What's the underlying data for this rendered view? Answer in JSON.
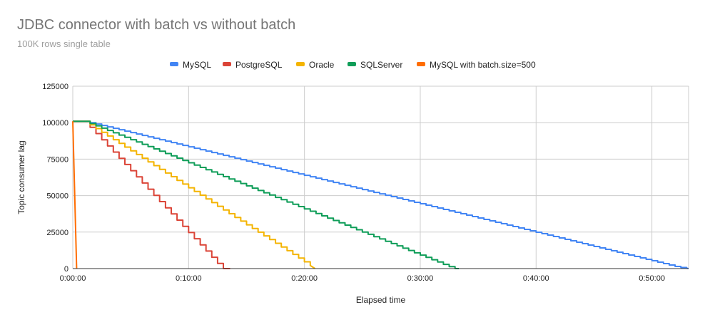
{
  "chart_data": {
    "type": "line",
    "title": "JDBC connector with batch vs without batch",
    "subtitle": "100K rows single table",
    "xlabel": "Elapsed time",
    "ylabel": "Topic consumer lag",
    "x_unit": "seconds",
    "xlim": [
      0,
      3190
    ],
    "ylim": [
      0,
      125000
    ],
    "x_ticks": [
      {
        "value": 0,
        "label": "0:00:00"
      },
      {
        "value": 600,
        "label": "0:10:00"
      },
      {
        "value": 1200,
        "label": "0:20:00"
      },
      {
        "value": 1800,
        "label": "0:30:00"
      },
      {
        "value": 2400,
        "label": "0:40:00"
      },
      {
        "value": 3000,
        "label": "0:50:00"
      }
    ],
    "y_ticks": [
      {
        "value": 0,
        "label": "0"
      },
      {
        "value": 25000,
        "label": "25000"
      },
      {
        "value": 50000,
        "label": "50000"
      },
      {
        "value": 75000,
        "label": "75000"
      },
      {
        "value": 100000,
        "label": "100000"
      },
      {
        "value": 125000,
        "label": "125000"
      }
    ],
    "grid": true,
    "legend_position": "top",
    "series": [
      {
        "name": "MySQL",
        "color": "#4285f4",
        "x": [
          0,
          60,
          3135,
          3190
        ],
        "y": [
          101000,
          101000,
          1000,
          0
        ]
      },
      {
        "name": "PostgreSQL",
        "color": "#db4437",
        "x": [
          0,
          60,
          775,
          815
        ],
        "y": [
          101000,
          101000,
          0,
          0
        ]
      },
      {
        "name": "Oracle",
        "color": "#f4b400",
        "x": [
          0,
          60,
          1255
        ],
        "y": [
          101000,
          101000,
          0
        ]
      },
      {
        "name": "SQLServer",
        "color": "#0f9d58",
        "x": [
          0,
          60,
          1975,
          2000
        ],
        "y": [
          101000,
          101000,
          0,
          0
        ]
      },
      {
        "name": "MySQL with batch.size=500",
        "color": "#ff6d01",
        "x": [
          0,
          20
        ],
        "y": [
          101000,
          0
        ]
      }
    ]
  }
}
